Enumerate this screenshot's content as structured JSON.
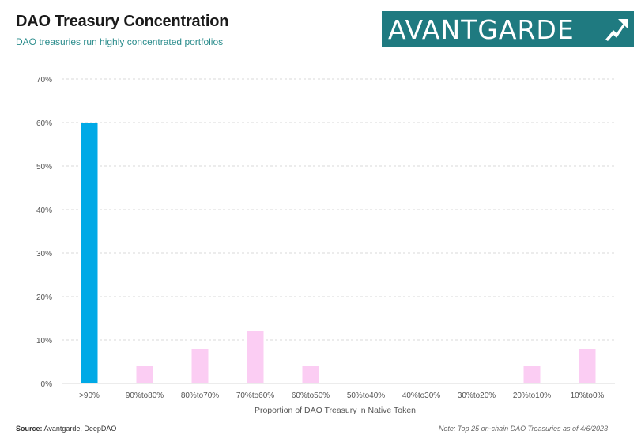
{
  "header": {
    "title": "DAO Treasury Concentration",
    "subtitle": "DAO treasuries run highly concentrated portfolios",
    "logo_text": "AVANTGARDE"
  },
  "footer": {
    "source_label": "Source:",
    "source_value": "Avantgarde, DeepDAO",
    "note": "Note: Top 25 on-chain DAO Treasuries as of 4/6/2023"
  },
  "colors": {
    "highlight_bar": "#00a9e6",
    "other_bar": "#fbcdf3",
    "grid": "#d9d9d9",
    "logo_bg": "#1f7a80"
  },
  "chart_data": {
    "type": "bar",
    "title": "DAO Treasury Concentration",
    "subtitle": "DAO treasuries run highly concentrated portfolios",
    "xlabel": "Proportion of DAO Treasury in Native Token",
    "ylabel": "",
    "categories": [
      ">90%",
      "90%to80%",
      "80%to70%",
      "70%to60%",
      "60%to50%",
      "50%to40%",
      "40%to30%",
      "30%to20%",
      "20%to10%",
      "10%to0%"
    ],
    "values": [
      60,
      4,
      8,
      12,
      4,
      0,
      0,
      0,
      4,
      8
    ],
    "ylim": [
      0,
      70
    ],
    "yticks": [
      "0%",
      "10%",
      "20%",
      "30%",
      "40%",
      "50%",
      "60%",
      "70%"
    ],
    "ytick_values": [
      0,
      10,
      20,
      30,
      40,
      50,
      60,
      70
    ],
    "grid": true,
    "highlight_index": 0
  }
}
